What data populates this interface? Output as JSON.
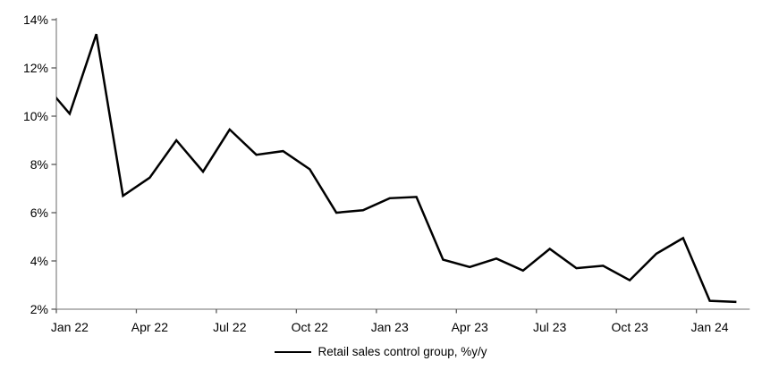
{
  "chart_data": {
    "type": "line",
    "title": "",
    "background_color": "#ffffff",
    "grid": false,
    "legend_position": "bottom-center",
    "y_axis": {
      "min": 2,
      "max": 14,
      "tick_step": 2,
      "tick_labels": [
        "2%",
        "4%",
        "6%",
        "8%",
        "10%",
        "12%",
        "14%"
      ],
      "axis_color": "#8c8c8c",
      "tick_color": "#595959"
    },
    "x_axis": {
      "tick_labels": [
        "Jan 22",
        "Apr 22",
        "Jul 22",
        "Oct 22",
        "Jan 23",
        "Apr 23",
        "Jul 23",
        "Oct 23",
        "Jan 24"
      ],
      "months_per_tick": 3,
      "label_placement": "between-ticks",
      "axis_color": "#8c8c8c",
      "tick_color": "#595959"
    },
    "series": [
      {
        "name": "Retail sales control group, %y/y",
        "color": "#000000",
        "line_width": 2.5,
        "first_point_clipped_at_left_axis": true,
        "x": [
          "Dec 21",
          "Jan 22",
          "Feb 22",
          "Mar 22",
          "Apr 22",
          "May 22",
          "Jun 22",
          "Jul 22",
          "Aug 22",
          "Sep 22",
          "Oct 22",
          "Nov 22",
          "Dec 22",
          "Jan 23",
          "Feb 23",
          "Mar 23",
          "Apr 23",
          "May 23",
          "Jun 23",
          "Jul 23",
          "Aug 23",
          "Sep 23",
          "Oct 23",
          "Nov 23",
          "Dec 23",
          "Jan 24",
          "Feb 24"
        ],
        "values": [
          11.4,
          10.1,
          13.4,
          6.7,
          7.45,
          9.0,
          7.7,
          9.45,
          8.4,
          8.55,
          7.8,
          6.0,
          6.1,
          6.6,
          6.65,
          4.05,
          3.75,
          4.1,
          3.6,
          4.5,
          3.7,
          3.8,
          3.2,
          4.3,
          4.95,
          2.35,
          2.3
        ]
      }
    ]
  }
}
